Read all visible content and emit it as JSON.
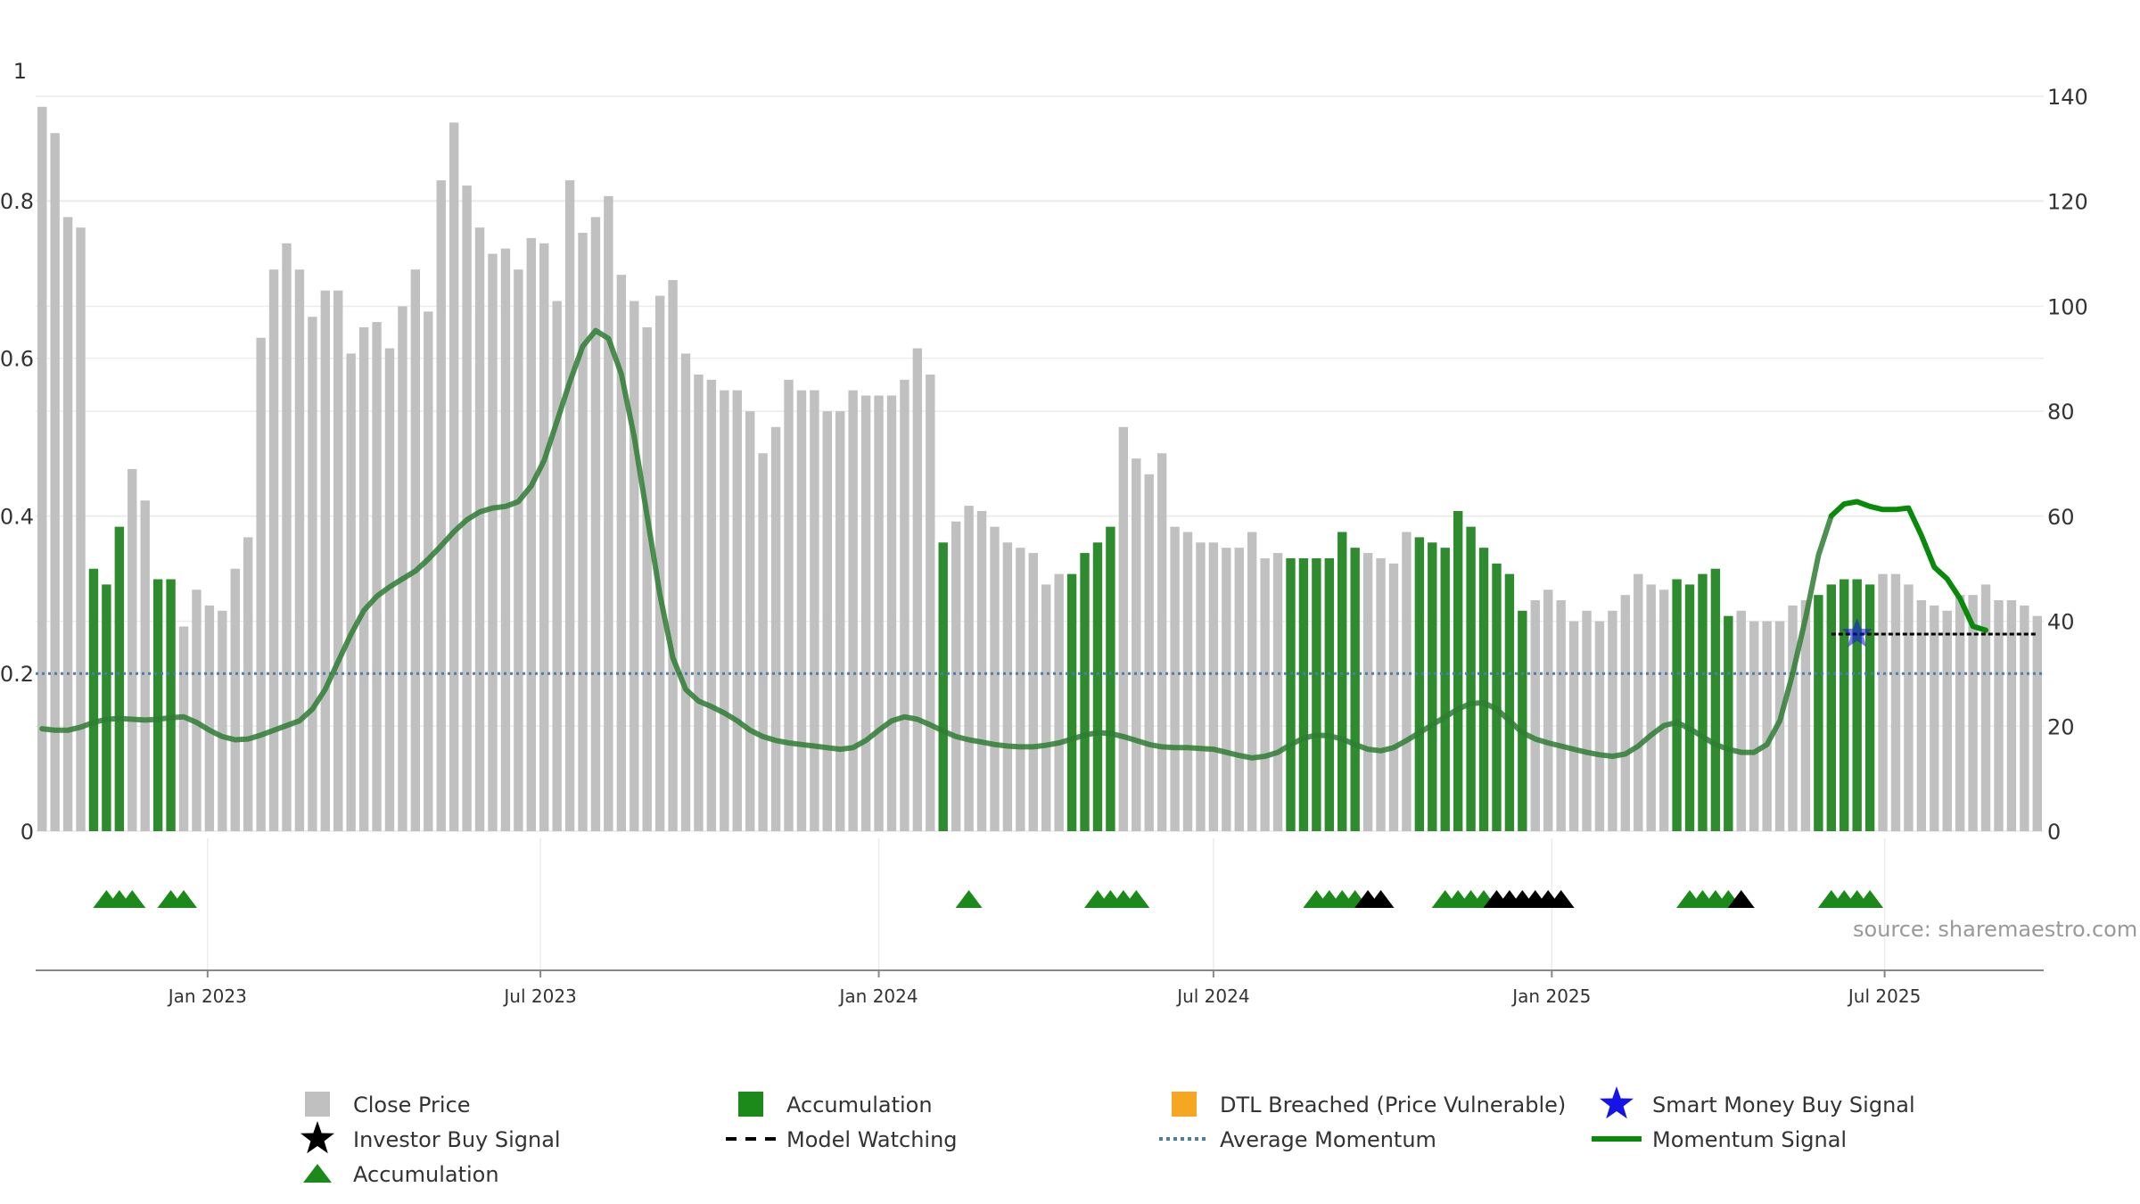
{
  "chart_data": {
    "type": "bar",
    "source_note": "source: sharemaestro.com",
    "colors": {
      "close_price": "#c0c0c0",
      "accumulation": "#2e8b2e",
      "momentum": "#2e7d32",
      "momentum_highlight": "#0a8a0a",
      "average_momentum": "#4a7fa8",
      "investor_buy": "#000000",
      "accumulation_marker": "#1b8a1b",
      "smart_money": "#1414e6",
      "dtl_breached": "#f5a623",
      "model_watching": "#000000",
      "grid": "#ececec"
    },
    "left_axis": {
      "ylim": [
        0,
        1
      ],
      "ticks": [
        0,
        0.2,
        0.4,
        0.6,
        0.8
      ],
      "tick_labels": [
        "0",
        "0.2",
        "0.4",
        "0.6",
        "0.8"
      ],
      "top_label": "1"
    },
    "right_axis": {
      "ylim": [
        0,
        140
      ],
      "ticks": [
        0,
        20,
        40,
        60,
        80,
        100,
        120,
        140
      ],
      "tick_labels": [
        "0",
        "20",
        "40",
        "60",
        "80",
        "100",
        "120",
        "140"
      ]
    },
    "x_axis": {
      "start": "2022-10-03",
      "weeks": 156,
      "date_ticks": [
        {
          "label": "Jan 2023",
          "date": "2023-01-01"
        },
        {
          "label": "Jul 2023",
          "date": "2023-07-01"
        },
        {
          "label": "Jan 2024",
          "date": "2024-01-01"
        },
        {
          "label": "Jul 2024",
          "date": "2024-07-01"
        },
        {
          "label": "Jan 2025",
          "date": "2025-01-01"
        },
        {
          "label": "Jul 2025",
          "date": "2025-07-01"
        }
      ]
    },
    "close_price": [
      138,
      133,
      117,
      115,
      50,
      47,
      58,
      69,
      63,
      48,
      48,
      39,
      46,
      43,
      42,
      50,
      56,
      94,
      107,
      112,
      107,
      98,
      103,
      103,
      91,
      96,
      97,
      92,
      100,
      107,
      99,
      124,
      135,
      123,
      115,
      110,
      111,
      107,
      113,
      112,
      101,
      124,
      114,
      117,
      121,
      106,
      101,
      96,
      102,
      105,
      91,
      87,
      86,
      84,
      84,
      80,
      72,
      77,
      86,
      84,
      84,
      80,
      80,
      84,
      83,
      83,
      83,
      86,
      92,
      87,
      55,
      59,
      62,
      61,
      58,
      55,
      54,
      53,
      47,
      49,
      49,
      53,
      55,
      58,
      77,
      71,
      68,
      72,
      58,
      57,
      55,
      55,
      54,
      54,
      57,
      52,
      53,
      52,
      52,
      52,
      52,
      57,
      54,
      53,
      52,
      51,
      57,
      56,
      55,
      54,
      61,
      58,
      54,
      51,
      49,
      42,
      44,
      46,
      44,
      40,
      42,
      40,
      42,
      45,
      49,
      47,
      46,
      48,
      47,
      49,
      50,
      41,
      42,
      40,
      40,
      40,
      43,
      44,
      45,
      47,
      48,
      48,
      47,
      49,
      49,
      47,
      44,
      43,
      42,
      45,
      45,
      47,
      44,
      44,
      43,
      41
    ],
    "accumulation_weeks": [
      4,
      5,
      6,
      9,
      10,
      70,
      80,
      81,
      82,
      83,
      97,
      98,
      99,
      100,
      101,
      102,
      107,
      108,
      109,
      110,
      111,
      112,
      113,
      114,
      115,
      127,
      128,
      129,
      130,
      131,
      138,
      139,
      140,
      141,
      142
    ],
    "momentum": [
      0.13,
      0.128,
      0.128,
      0.132,
      0.138,
      0.142,
      0.143,
      0.142,
      0.141,
      0.142,
      0.144,
      0.145,
      0.138,
      0.128,
      0.12,
      0.116,
      0.117,
      0.122,
      0.128,
      0.134,
      0.14,
      0.155,
      0.18,
      0.215,
      0.25,
      0.28,
      0.298,
      0.31,
      0.32,
      0.33,
      0.345,
      0.362,
      0.38,
      0.395,
      0.405,
      0.41,
      0.412,
      0.418,
      0.438,
      0.47,
      0.52,
      0.57,
      0.615,
      0.635,
      0.625,
      0.58,
      0.5,
      0.4,
      0.3,
      0.22,
      0.18,
      0.165,
      0.158,
      0.15,
      0.14,
      0.128,
      0.12,
      0.115,
      0.112,
      0.11,
      0.108,
      0.106,
      0.104,
      0.106,
      0.115,
      0.128,
      0.14,
      0.145,
      0.142,
      0.135,
      0.127,
      0.12,
      0.116,
      0.113,
      0.11,
      0.108,
      0.107,
      0.107,
      0.109,
      0.112,
      0.117,
      0.122,
      0.125,
      0.124,
      0.12,
      0.115,
      0.11,
      0.107,
      0.106,
      0.106,
      0.105,
      0.104,
      0.1,
      0.096,
      0.093,
      0.095,
      0.1,
      0.11,
      0.118,
      0.122,
      0.121,
      0.117,
      0.11,
      0.104,
      0.102,
      0.106,
      0.115,
      0.125,
      0.135,
      0.145,
      0.155,
      0.162,
      0.163,
      0.155,
      0.14,
      0.125,
      0.117,
      0.112,
      0.108,
      0.104,
      0.1,
      0.097,
      0.095,
      0.098,
      0.108,
      0.122,
      0.134,
      0.138,
      0.13,
      0.12,
      0.11,
      0.104,
      0.1,
      0.1,
      0.11,
      0.14,
      0.2,
      0.27,
      0.35,
      0.4,
      0.415,
      0.418,
      0.412,
      0.408,
      0.408,
      0.41,
      0.375,
      0.335,
      0.32,
      0.295,
      0.26,
      0.255
    ],
    "momentum_highlight_from_week": 139,
    "average_momentum": 0.2,
    "signal_rows": {
      "accumulation_triangles": [
        5,
        6,
        7,
        10,
        11,
        72,
        82,
        83,
        84,
        85,
        99,
        100,
        101,
        102,
        109,
        110,
        111,
        112,
        128,
        129,
        130,
        131,
        139,
        140,
        141,
        142
      ],
      "investor_buy_triangles": [
        103,
        104,
        113,
        114,
        115,
        116,
        117,
        118,
        132
      ]
    },
    "smart_money_signal": {
      "week": 141,
      "value": 0.25
    },
    "model_watching": {
      "from_week": 139,
      "to_week": 155,
      "value": 0.25
    },
    "legend": [
      {
        "label": "Close Price",
        "symbol": "square-grey"
      },
      {
        "label": "Accumulation",
        "symbol": "square-green"
      },
      {
        "label": "DTL Breached (Price Vulnerable)",
        "symbol": "square-orange"
      },
      {
        "label": "Smart Money Buy Signal",
        "symbol": "star-blue"
      },
      {
        "label": "Investor Buy Signal",
        "symbol": "star-black"
      },
      {
        "label": "Model Watching",
        "symbol": "dash-black"
      },
      {
        "label": "Average Momentum",
        "symbol": "dots-blue"
      },
      {
        "label": "Momentum Signal",
        "symbol": "line-green"
      },
      {
        "label": "Accumulation",
        "symbol": "triangle-green"
      }
    ]
  }
}
